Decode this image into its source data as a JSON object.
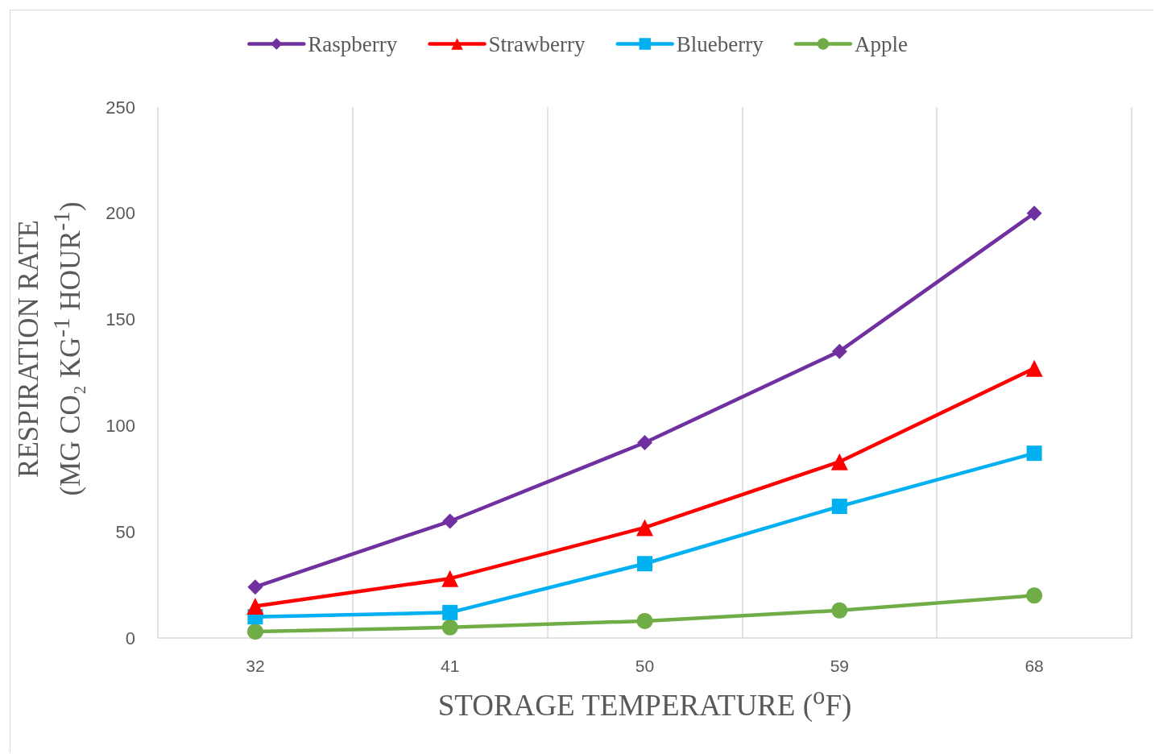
{
  "chart_data": {
    "type": "line",
    "xlabel": "STORAGE TEMPERATURE ($^{o}$F)",
    "ylabel": "RESPIRATION RATE\n(MG CO₂ KG$^{-1}$ HOUR$^{-1}$)",
    "categories": [
      "32",
      "41",
      "50",
      "59",
      "68"
    ],
    "series": [
      {
        "name": "Raspberry",
        "color": "#7030a0",
        "marker": "diamond",
        "values": [
          24,
          55,
          92,
          135,
          200
        ]
      },
      {
        "name": "Strawberry",
        "color": "#ff0000",
        "marker": "triangle",
        "values": [
          15,
          28,
          52,
          83,
          127
        ]
      },
      {
        "name": "Blueberry",
        "color": "#00b0f0",
        "marker": "square",
        "values": [
          10,
          12,
          35,
          62,
          87
        ]
      },
      {
        "name": "Apple",
        "color": "#70ad47",
        "marker": "circle",
        "values": [
          3,
          5,
          8,
          13,
          20
        ]
      }
    ],
    "ylim": [
      0,
      250
    ],
    "yticks": [
      0,
      50,
      100,
      150,
      200,
      250
    ],
    "grid": "x",
    "legend": "top",
    "line_style": "solid"
  }
}
